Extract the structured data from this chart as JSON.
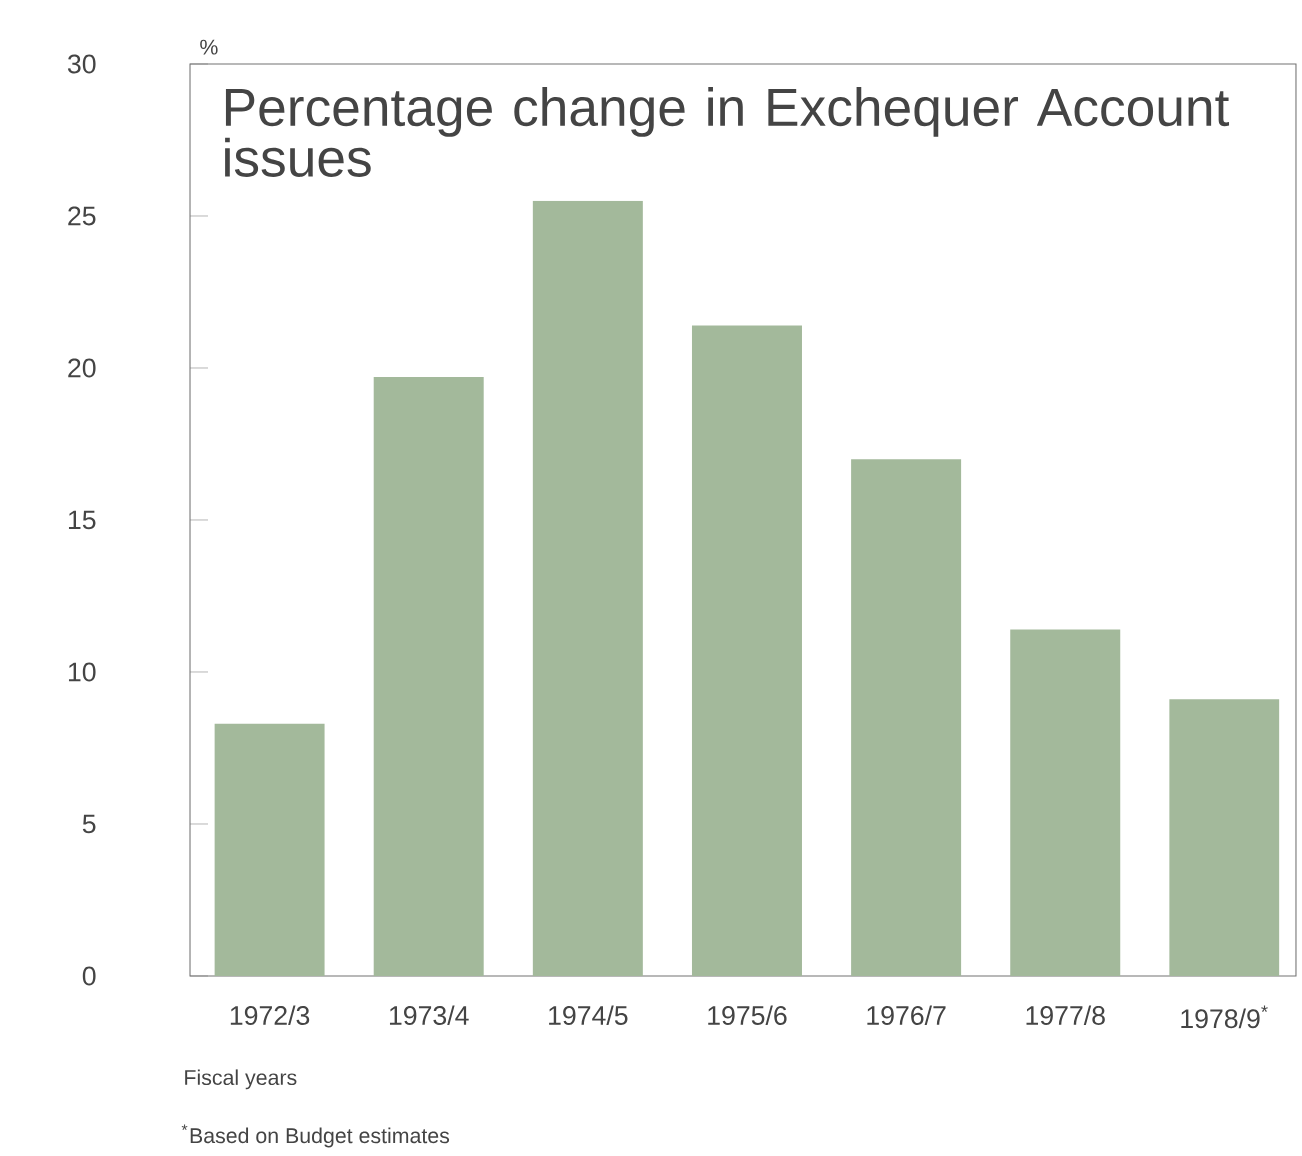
{
  "chart_data": {
    "type": "bar",
    "title": "Percentage change in Exchequer Account issues",
    "ylabel": "%",
    "xlabel": "Fiscal years",
    "categories": [
      "1972/3",
      "1973/4",
      "1974/5",
      "1975/6",
      "1976/7",
      "1977/8",
      "1978/9$^{*}$"
    ],
    "values": [
      8.3,
      19.7,
      25.5,
      21.4,
      17.0,
      11.4,
      9.1
    ],
    "color": "#a3b99b",
    "ylim": [
      0,
      30
    ],
    "yticks": [
      0,
      5,
      10,
      15,
      20,
      25,
      30
    ],
    "grid": false,
    "annotations": [
      "$^{*}$Based on Budget estimates"
    ]
  }
}
